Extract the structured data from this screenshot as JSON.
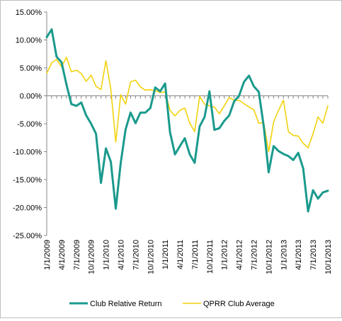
{
  "chart_data": {
    "type": "line",
    "title": "",
    "xlabel": "",
    "ylabel": "",
    "ylim": [
      -25,
      15
    ],
    "y_tick_labels": [
      "15.00%",
      "10.00%",
      "5.00%",
      "0.00%",
      "-5.00%",
      "-10.00%",
      "-15.00%",
      "-20.00%",
      "-25.00%"
    ],
    "y_tick_values": [
      15,
      10,
      5,
      0,
      -5,
      -10,
      -15,
      -20,
      -25
    ],
    "x_tick_labels": [
      "1/1/2009",
      "4/1/2009",
      "7/1/2009",
      "10/1/2009",
      "1/1/2010",
      "4/1/2010",
      "7/1/2010",
      "10/1/2010",
      "1/1/2011",
      "4/1/2011",
      "7/1/2011",
      "10/1/2011",
      "1/1/2012",
      "4/1/2012",
      "7/1/2012",
      "10/1/2012",
      "1/1/2013",
      "4/1/2013",
      "7/1/2013",
      "10/1/2013"
    ],
    "x_tick_months": [
      0,
      3,
      6,
      9,
      12,
      15,
      18,
      21,
      24,
      27,
      30,
      33,
      36,
      39,
      42,
      45,
      48,
      51,
      54,
      57
    ],
    "x_start": "1/1/2009",
    "x_end": "10/1/2013",
    "grid": false,
    "legend_position": "bottom",
    "series": [
      {
        "name": "Club Relative Return",
        "color": "#1a9a8c",
        "months": [
          0,
          1,
          2,
          3,
          4,
          5,
          6,
          7,
          8,
          9,
          10,
          11,
          12,
          13,
          14,
          15,
          16,
          17,
          18,
          19,
          20,
          21,
          22,
          23,
          24,
          25,
          26,
          27,
          28,
          29,
          30,
          31,
          32,
          33,
          34,
          35,
          36,
          37,
          38,
          39,
          40,
          41,
          42,
          43,
          44,
          45,
          46,
          47,
          48,
          49,
          50,
          51,
          52,
          53,
          54,
          55,
          56,
          57
        ],
        "values": [
          10.5,
          11.9,
          7.0,
          6.0,
          2.0,
          -1.5,
          -1.8,
          -1.2,
          -3.5,
          -5.0,
          -6.8,
          -15.6,
          -9.4,
          -11.8,
          -20.2,
          -12.0,
          -6.0,
          -3.0,
          -4.9,
          -3.0,
          -3.0,
          -2.2,
          1.5,
          0.8,
          2.2,
          -6.5,
          -10.5,
          -9.0,
          -7.6,
          -10.5,
          -12.0,
          -5.5,
          -3.8,
          0.8,
          -6.1,
          -5.8,
          -4.5,
          -3.5,
          -1.0,
          0.0,
          2.5,
          3.6,
          1.7,
          0.7,
          -5.5,
          -13.7,
          -9.0,
          -9.9,
          -10.4,
          -10.8,
          -11.5,
          -10.2,
          -13.0,
          -20.7,
          -16.9,
          -18.4,
          -17.3,
          -17.0
        ]
      },
      {
        "name": "QPRR Club Average",
        "color": "#f2d20d",
        "months": [
          0,
          1,
          2,
          3,
          4,
          5,
          6,
          7,
          8,
          9,
          10,
          11,
          12,
          13,
          14,
          15,
          16,
          17,
          18,
          19,
          20,
          21,
          22,
          23,
          24,
          25,
          26,
          27,
          28,
          29,
          30,
          31,
          32,
          33,
          34,
          35,
          36,
          37,
          38,
          39,
          40,
          41,
          42,
          43,
          44,
          45,
          46,
          47,
          48,
          49,
          50,
          51,
          52,
          53,
          54,
          55,
          56,
          57
        ],
        "values": [
          4.0,
          5.9,
          6.5,
          5.2,
          6.9,
          4.3,
          4.6,
          4.0,
          2.6,
          3.7,
          1.7,
          1.1,
          6.3,
          1.2,
          -8.3,
          0.2,
          -1.5,
          2.5,
          2.8,
          1.6,
          1.0,
          1.1,
          0.9,
          0.6,
          0.7,
          -2.6,
          -3.6,
          -2.6,
          -2.2,
          -4.9,
          -6.4,
          -0.1,
          -1.5,
          -1.8,
          -2.0,
          -3.2,
          -1.8,
          -0.3,
          -0.8,
          -0.8,
          -1.4,
          -2.0,
          -2.5,
          -4.9,
          -4.8,
          -10.0,
          -4.7,
          -2.6,
          -0.8,
          -6.4,
          -7.1,
          -7.2,
          -8.5,
          -9.3,
          -6.8,
          -3.8,
          -4.9,
          -1.8
        ]
      }
    ]
  }
}
